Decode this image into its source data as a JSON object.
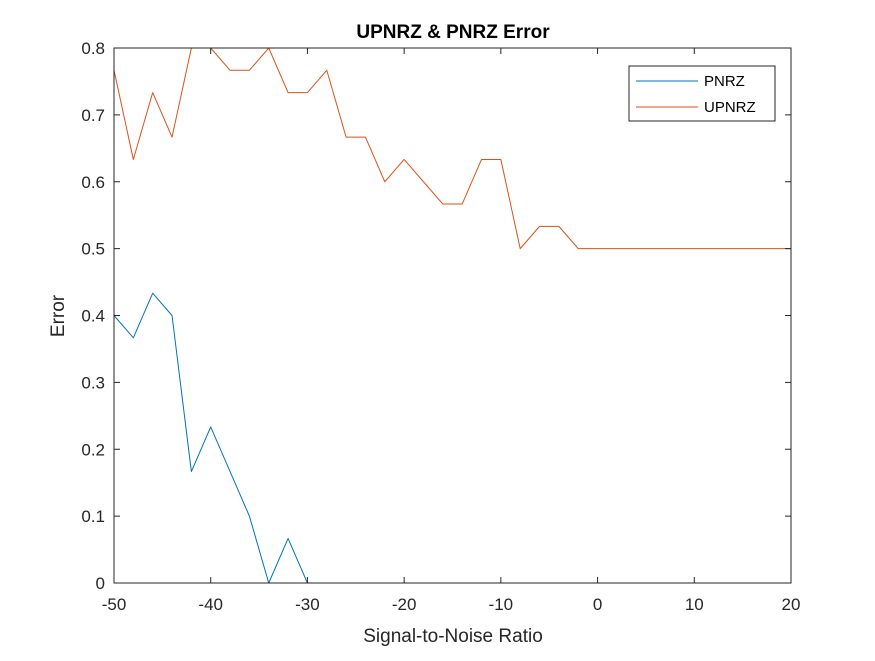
{
  "chart_data": {
    "type": "line",
    "title": "UPNRZ & PNRZ Error",
    "xlabel": "Signal-to-Noise Ratio",
    "ylabel": "Error",
    "xlim": [
      -50,
      20
    ],
    "ylim": [
      0,
      0.8
    ],
    "xticks": [
      -50,
      -40,
      -30,
      -20,
      -10,
      0,
      10,
      20
    ],
    "xtick_labels": [
      "-50",
      "-40",
      "-30",
      "-20",
      "-10",
      "0",
      "10",
      "20"
    ],
    "yticks": [
      0,
      0.1,
      0.2,
      0.3,
      0.4,
      0.5,
      0.6,
      0.7,
      0.8
    ],
    "ytick_labels": [
      "0",
      "0.1",
      "0.2",
      "0.3",
      "0.4",
      "0.5",
      "0.6",
      "0.7",
      "0.8"
    ],
    "grid": false,
    "legend_position": "top-right",
    "x": [
      -50,
      -48,
      -46,
      -44,
      -42,
      -40,
      -38,
      -36,
      -34,
      -32,
      -30,
      -28,
      -26,
      -24,
      -22,
      -20,
      -18,
      -16,
      -14,
      -12,
      -10,
      -8,
      -6,
      -4,
      -2,
      0,
      2,
      4,
      6,
      8,
      10,
      12,
      14,
      16,
      18,
      20
    ],
    "series": [
      {
        "name": "PNRZ",
        "color": "#0072BD",
        "values": [
          0.4,
          0.3667,
          0.4333,
          0.4,
          0.1667,
          0.2333,
          0.1667,
          0.1,
          0.0,
          0.0667,
          0.0,
          0,
          0,
          0,
          0,
          0,
          0,
          0,
          0,
          0,
          0,
          0,
          0,
          0,
          0,
          0,
          0,
          0,
          0,
          0,
          0,
          0,
          0,
          0,
          0,
          0
        ]
      },
      {
        "name": "UPNRZ",
        "color": "#D95319",
        "values": [
          0.7667,
          0.6333,
          0.7333,
          0.6667,
          0.8,
          0.8,
          0.7667,
          0.7667,
          0.8,
          0.7333,
          0.7333,
          0.7667,
          0.6667,
          0.6667,
          0.6,
          0.6333,
          0.6,
          0.5667,
          0.5667,
          0.6333,
          0.6333,
          0.5,
          0.5333,
          0.5333,
          0.5,
          0.5,
          0.5,
          0.5,
          0.5,
          0.5,
          0.5,
          0.5,
          0.5,
          0.5,
          0.5,
          0.5
        ]
      }
    ]
  }
}
